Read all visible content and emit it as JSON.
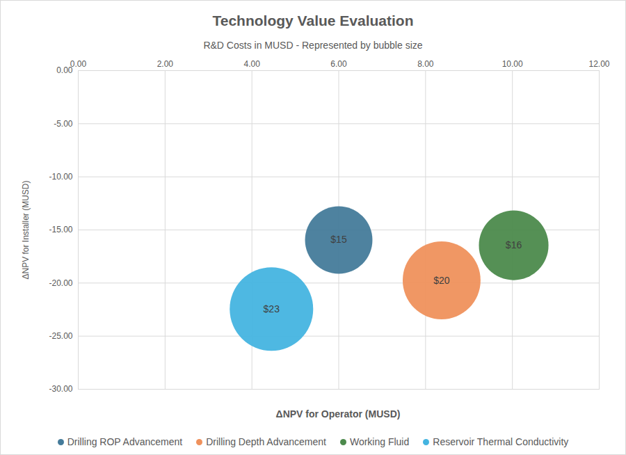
{
  "chart_data": {
    "type": "bubble",
    "title": "Technology Value Evaluation",
    "subtitle": "R&D Costs in MUSD - Represented by bubble size",
    "x_label": "ΔNPV for Operator (MUSD)",
    "y_label": "ΔNPV for Installer (MUSD)",
    "xlim": [
      0,
      12
    ],
    "xticks": [
      {
        "value": 0,
        "label": "0.00"
      },
      {
        "value": 2,
        "label": "2.00"
      },
      {
        "value": 4,
        "label": "4.00"
      },
      {
        "value": 6,
        "label": "6.00"
      },
      {
        "value": 8,
        "label": "8.00"
      },
      {
        "value": 10,
        "label": "10.00"
      },
      {
        "value": 12,
        "label": "12.00"
      }
    ],
    "ylim": [
      -30,
      0
    ],
    "yticks": [
      {
        "value": -30,
        "label": "-30.00"
      },
      {
        "value": -25,
        "label": "-25.00"
      },
      {
        "value": -20,
        "label": "-20.00"
      },
      {
        "value": -15,
        "label": "-15.00"
      },
      {
        "value": -10,
        "label": "-10.00"
      },
      {
        "value": -5,
        "label": "-5.00"
      },
      {
        "value": 0,
        "label": "0.00"
      }
    ],
    "grid": true,
    "legend": "bottom",
    "data_labels": true,
    "series": [
      {
        "name": "Drilling ROP Advancement",
        "color": "#457b9a",
        "x": [
          6.0
        ],
        "y": [
          -15.95
        ],
        "size": [
          15
        ],
        "size_labels": [
          "$15"
        ]
      },
      {
        "name": "Drilling Depth Advancement",
        "color": "#ef915c",
        "x": [
          8.37
        ],
        "y": [
          -19.75
        ],
        "size": [
          20
        ],
        "size_labels": [
          "$20"
        ]
      },
      {
        "name": "Working Fluid",
        "color": "#4c8a4c",
        "x": [
          10.03
        ],
        "y": [
          -16.45
        ],
        "size": [
          16
        ],
        "size_labels": [
          "$16"
        ]
      },
      {
        "name": "Reservoir Thermal Conductivity",
        "color": "#44b4e0",
        "x": [
          4.45
        ],
        "y": [
          -22.45
        ],
        "size": [
          23
        ],
        "size_labels": [
          "$23"
        ]
      }
    ]
  }
}
